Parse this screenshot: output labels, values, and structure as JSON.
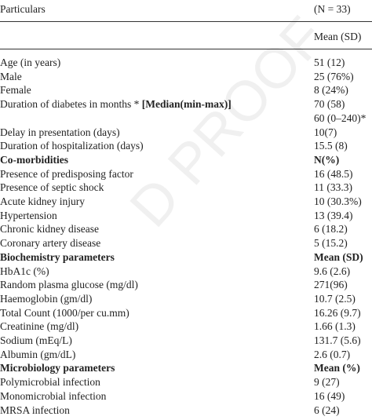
{
  "watermark": "D PROOF",
  "header": {
    "col1": "Particulars",
    "col2": "(N = 33)",
    "subheader": "Mean (SD)"
  },
  "rows": [
    {
      "label": "Age (in years)",
      "value": "51 (12)"
    },
    {
      "label": "Male",
      "value": "25 (76%)"
    },
    {
      "label": "Female",
      "value": "8 (24%)"
    },
    {
      "label": "Duration of diabetes in months * ",
      "label_bold": "[Median(min-max)]",
      "value": "70 (58)"
    },
    {
      "value": "60 (0–240)*"
    },
    {
      "label": "Delay in presentation (days)",
      "value": "10(7)"
    },
    {
      "label": "Duration of hospitalization (days)",
      "value": "15.5 (8)"
    },
    {
      "label": "Co-morbidities",
      "value": "N(%)",
      "bold": true
    },
    {
      "label": "Presence of predisposing factor",
      "value": "16 (48.5)"
    },
    {
      "label": "Presence of septic shock",
      "value": "11 (33.3)"
    },
    {
      "label": "Acute kidney injury",
      "value": "10 (30.3%)"
    },
    {
      "label": "Hypertension",
      "value": "13 (39.4)"
    },
    {
      "label": "Chronic kidney disease",
      "value": "6 (18.2)"
    },
    {
      "label": "Coronary artery disease",
      "value": "5 (15.2)"
    },
    {
      "label": "Biochemistry parameters",
      "value": "Mean (SD)",
      "bold": true
    },
    {
      "label": "HbA1c (%)",
      "value": "9.6 (2.6)"
    },
    {
      "label": "Random plasma glucose (mg/dl)",
      "value": "271(96)"
    },
    {
      "label": "Haemoglobin (gm/dl)",
      "value": "10.7 (2.5)"
    },
    {
      "label": "Total Count (1000/per cu.mm)",
      "value": "16.26 (9.7)"
    },
    {
      "label": "Creatinine (mg/dl)",
      "value": "1.66 (1.3)"
    },
    {
      "label": "Sodium (mEq/L)",
      "value": "131.7 (5.6)"
    },
    {
      "label": "Albumin (gm/dL)",
      "value": "2.6 (0.7)"
    },
    {
      "label": "Microbiology parameters",
      "value": "Mean (%)",
      "bold": true
    },
    {
      "label": "Polymicrobial infection",
      "value": "9 (27)"
    },
    {
      "label": "Monomicrobial infection",
      "value": "16 (49)"
    },
    {
      "label": "MRSA infection",
      "value": "6 (24)"
    }
  ]
}
